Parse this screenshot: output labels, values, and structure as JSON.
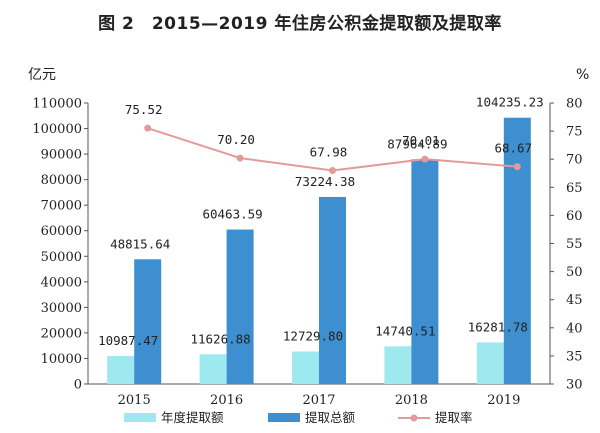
{
  "title": "图 2　2015—2019 年住房公积金提取额及提取率",
  "chart_data": {
    "type": "bar",
    "categories": [
      "2015",
      "2016",
      "2017",
      "2018",
      "2019"
    ],
    "y_left_unit": "亿元",
    "y_right_unit": "%",
    "ylim_left": [
      0,
      110000
    ],
    "ylim_right": [
      30,
      80
    ],
    "y_left_ticks": [
      "0",
      "10000",
      "20000",
      "30000",
      "40000",
      "50000",
      "60000",
      "70000",
      "80000",
      "90000",
      "100000",
      "110000"
    ],
    "y_right_ticks": [
      "30",
      "35",
      "40",
      "45",
      "50",
      "55",
      "60",
      "65",
      "70",
      "75",
      "80"
    ],
    "series": [
      {
        "name": "年度提取额",
        "axis": "left",
        "kind": "bar",
        "color": "#9ee8f0",
        "values": [
          10987.47,
          11626.88,
          12729.8,
          14740.51,
          16281.78
        ],
        "labels": [
          "10987.47",
          "11626.88",
          "12729.80",
          "14740.51",
          "16281.78"
        ]
      },
      {
        "name": "提取总额",
        "axis": "left",
        "kind": "bar",
        "color": "#3d8fd0",
        "values": [
          48815.64,
          60463.59,
          73224.38,
          87964.89,
          104235.23
        ],
        "labels": [
          "48815.64",
          "60463.59",
          "73224.38",
          "87964.89",
          "104235.23"
        ]
      },
      {
        "name": "提取率",
        "axis": "right",
        "kind": "line",
        "color": "#e39a9a",
        "values": [
          75.52,
          70.2,
          67.98,
          70.01,
          68.67
        ],
        "labels": [
          "75.52",
          "70.20",
          "67.98",
          "70.01",
          "68.67"
        ]
      }
    ],
    "legend": [
      "年度提取额",
      "提取总额",
      "提取率"
    ],
    "legend_position": "bottom"
  }
}
